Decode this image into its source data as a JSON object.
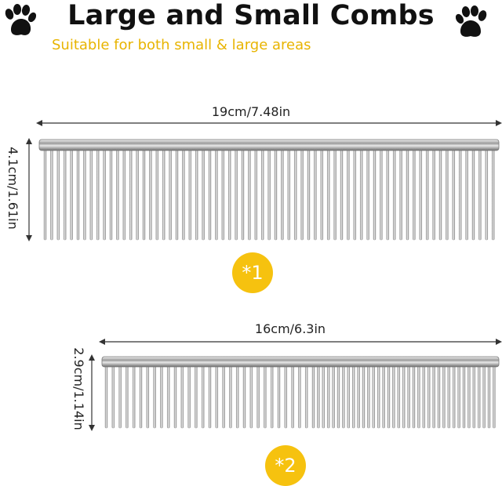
{
  "header": {
    "title": "Large and Small Combs",
    "subtitle": "Suitable for both small & large areas"
  },
  "icons": {
    "left": "paw-icon",
    "right": "paw-icon"
  },
  "comb_large": {
    "width_label": "19cm/7.48in",
    "height_label": "4.1cm/1.61in",
    "badge": "*1"
  },
  "comb_small": {
    "width_label": "16cm/6.3in",
    "height_label": "2.9cm/1.14in",
    "badge": "*2"
  },
  "colors": {
    "accent": "#f6c20f",
    "subtitle": "#e8b400"
  }
}
